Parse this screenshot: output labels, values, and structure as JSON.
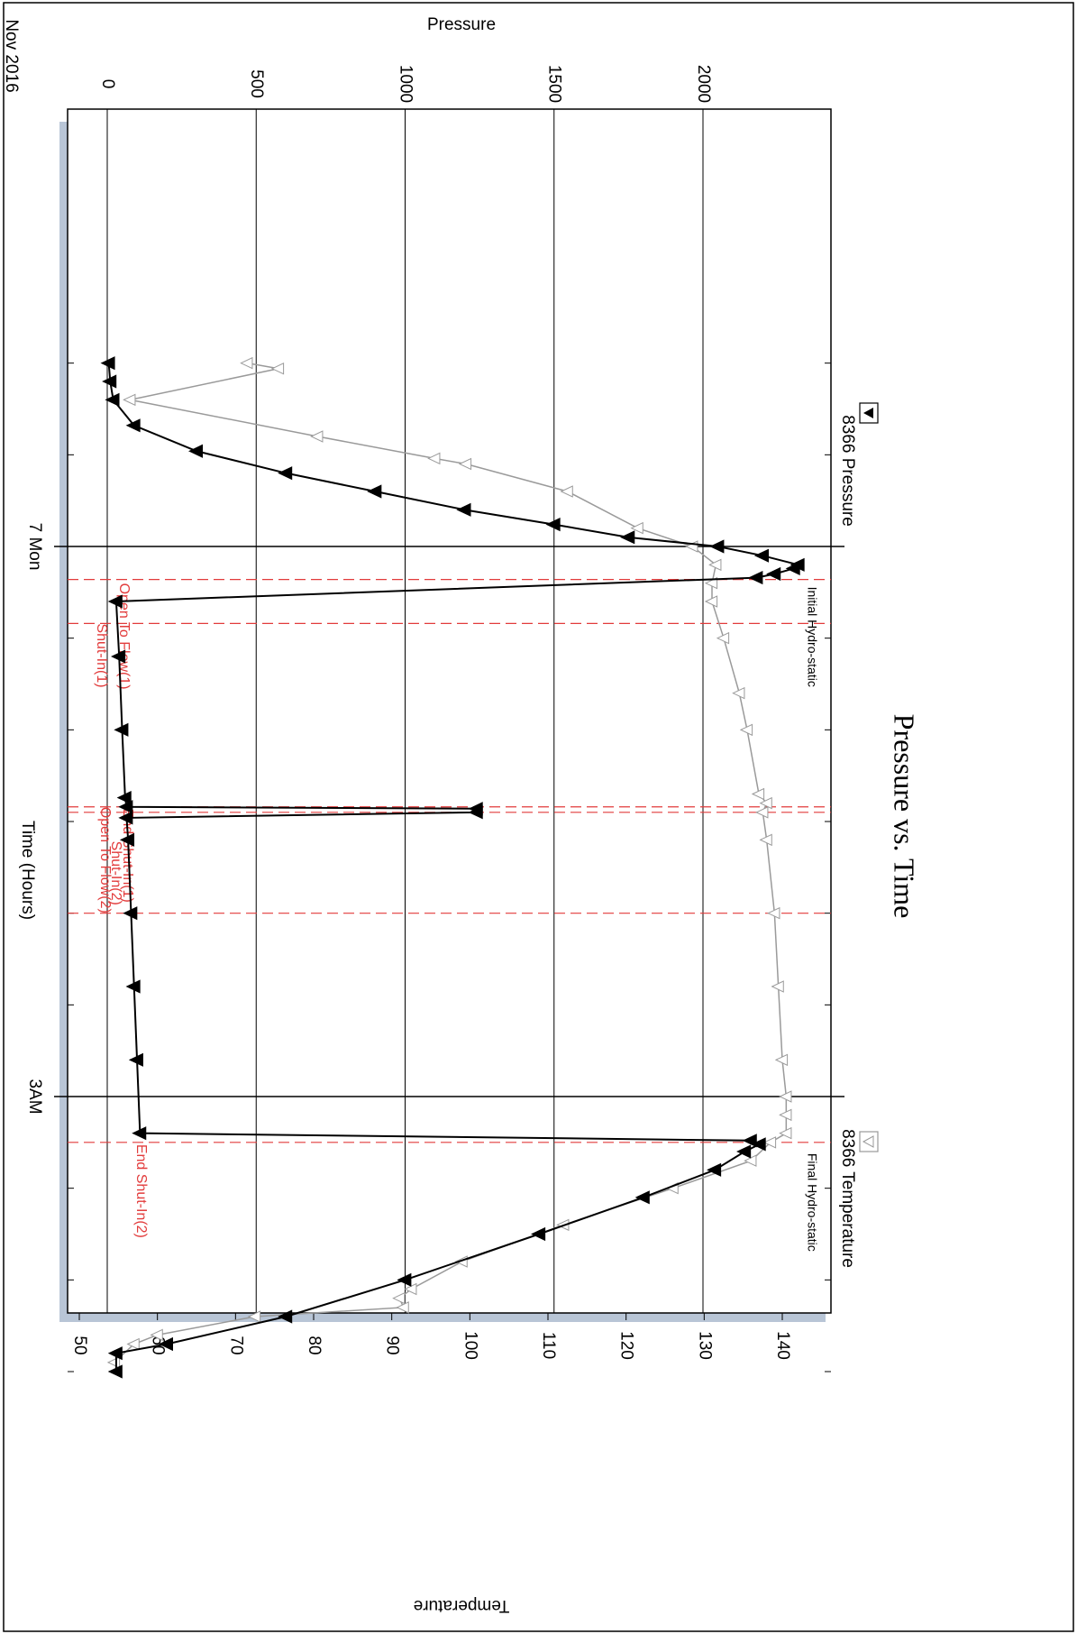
{
  "chart_data": {
    "type": "line",
    "orientation": "rotated 90 degrees clockwise",
    "title": "Pressure vs. Time",
    "xlabel": "Time (Hours)",
    "ylabel": "Pressure",
    "y2label": "Temperature",
    "date_label": "Nov 2016",
    "major_time_labels": [
      {
        "t": 0,
        "label": "7 Mon"
      },
      {
        "t": 3,
        "label": "3AM"
      }
    ],
    "xlim_hours": [
      -1.2,
      4.5
    ],
    "ylim": [
      -100,
      2450
    ],
    "y_ticks": [
      {
        "v": 0,
        "label": "0"
      },
      {
        "v": 500,
        "label": "500"
      },
      {
        "v": 1000,
        "label": "1000"
      },
      {
        "v": 1500,
        "label": "1500"
      },
      {
        "v": 2000,
        "label": "2000"
      }
    ],
    "y2lim": [
      50,
      141
    ],
    "y2_ticks": [
      50,
      60,
      70,
      80,
      90,
      100,
      110,
      120,
      130,
      140
    ],
    "grid": true,
    "legend": [
      {
        "label": "8366 Pressure",
        "marker": "filled-triangle",
        "color": "#000000",
        "position": "top"
      },
      {
        "label": "8366 Temperature",
        "marker": "open-triangle",
        "color": "#999999",
        "position": "bottom"
      }
    ],
    "series": [
      {
        "name": "8366 Pressure",
        "axis": "pressure",
        "x": [
          -1.0,
          -0.9,
          -0.8,
          -0.66,
          -0.52,
          -0.4,
          -0.3,
          -0.2,
          -0.12,
          -0.05,
          0.0,
          0.05,
          0.1,
          0.12,
          0.15,
          0.17,
          0.3,
          0.6,
          1.0,
          1.37,
          1.42,
          1.43,
          1.45,
          1.48,
          1.6,
          2.0,
          2.4,
          2.8,
          3.2,
          3.24,
          3.26,
          3.3,
          3.4,
          3.55,
          3.75,
          4.0,
          4.2,
          4.35,
          4.4,
          4.5
        ],
        "values": [
          5,
          10,
          20,
          90,
          300,
          600,
          900,
          1200,
          1500,
          1750,
          2050,
          2200,
          2320,
          2305,
          2240,
          2180,
          30,
          40,
          50,
          60,
          65,
          1240,
          1240,
          65,
          70,
          80,
          90,
          100,
          110,
          2160,
          2190,
          2140,
          2040,
          1800,
          1450,
          1000,
          600,
          200,
          30,
          30
        ]
      },
      {
        "name": "8366 Temperature",
        "axis": "temperature",
        "x": [
          -1.0,
          -0.97,
          -0.8,
          -0.6,
          -0.48,
          -0.45,
          -0.3,
          -0.1,
          0.0,
          0.1,
          0.2,
          0.3,
          0.5,
          0.8,
          1.0,
          1.35,
          1.4,
          1.45,
          1.6,
          2.0,
          2.4,
          2.8,
          3.0,
          3.1,
          3.2,
          3.25,
          3.35,
          3.5,
          3.7,
          3.9,
          4.05,
          4.1,
          4.15,
          4.2,
          4.3,
          4.35,
          4.45
        ],
        "values": [
          71.5,
          75.5,
          56.5,
          80.5,
          95.5,
          99.5,
          112.5,
          121.5,
          128.5,
          131.5,
          131.0,
          131.0,
          132.5,
          134.5,
          135.5,
          137.0,
          138.0,
          137.5,
          138.0,
          139.0,
          139.5,
          140.0,
          140.5,
          140.5,
          140.5,
          138.5,
          136.0,
          126.0,
          112.0,
          99.0,
          92.5,
          91.0,
          91.5,
          72.5,
          60.0,
          57.0,
          54.5
        ]
      }
    ],
    "event_lines": [
      {
        "t": 0.18,
        "label": "Open To Flow(1)"
      },
      {
        "t": 0.42,
        "label": "Shut-In(1)"
      },
      {
        "t": 1.42,
        "label": "End Shut-In(1)"
      },
      {
        "t": 1.45,
        "label": "Open To Flow(2)"
      },
      {
        "t": 2.0,
        "label": "Shut-In(2)"
      },
      {
        "t": 3.25,
        "label": "End Shut-In(2)"
      }
    ],
    "annotations": [
      {
        "t": 0.17,
        "text": "Initial Hydro-static"
      },
      {
        "t": 3.26,
        "text": "Final Hydro-static"
      }
    ]
  }
}
